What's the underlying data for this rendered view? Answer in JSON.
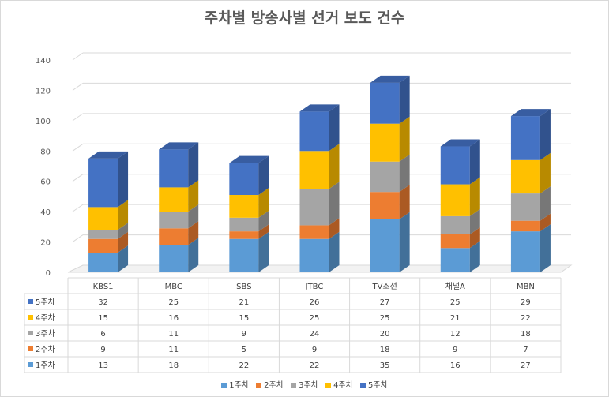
{
  "chart_data": {
    "type": "bar",
    "stacked": true,
    "three_d": true,
    "title": "주차별 방송사별 선거 보도 건수",
    "categories": [
      "KBS1",
      "MBC",
      "SBS",
      "JTBC",
      "TV조선",
      "채널A",
      "MBN"
    ],
    "series": [
      {
        "name": "1주차",
        "values": [
          13,
          18,
          22,
          22,
          35,
          16,
          27
        ],
        "color": "#5B9BD5"
      },
      {
        "name": "2주차",
        "values": [
          9,
          11,
          5,
          9,
          18,
          9,
          7
        ],
        "color": "#ED7D31"
      },
      {
        "name": "3주차",
        "values": [
          6,
          11,
          9,
          24,
          20,
          12,
          18
        ],
        "color": "#A5A5A5"
      },
      {
        "name": "4주차",
        "values": [
          15,
          16,
          15,
          25,
          25,
          21,
          22
        ],
        "color": "#FFC000"
      },
      {
        "name": "5주차",
        "values": [
          32,
          25,
          21,
          26,
          27,
          25,
          29
        ],
        "color": "#4472C4"
      }
    ],
    "ylim": [
      0,
      140
    ],
    "yticks": [
      0,
      20,
      40,
      60,
      80,
      100,
      120,
      140
    ],
    "grid": true,
    "legend": "bottom",
    "data_table": true
  }
}
